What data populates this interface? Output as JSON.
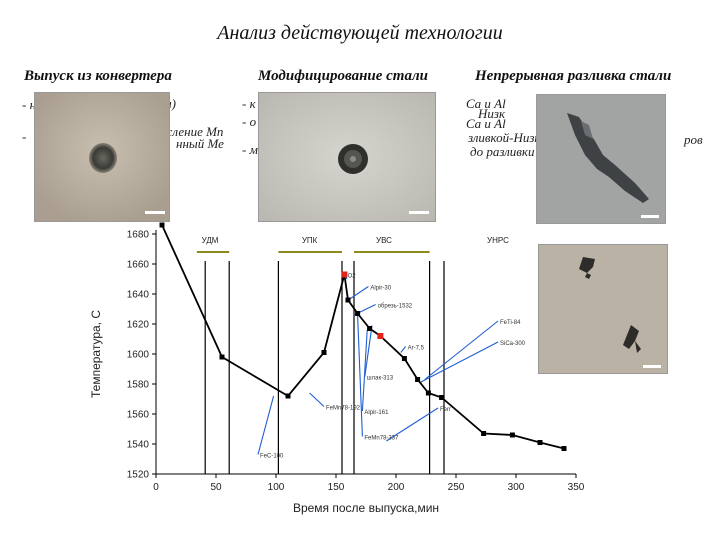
{
  "slide": {
    "title": "Анализ действующей технологии",
    "columns": [
      {
        "heading": "Выпуск из конвертера",
        "bullets": [
          "- н",
          "л)",
          "- ",
          "кисление Mn",
          "нный Ме"
        ]
      },
      {
        "heading": "Модифицирование стали",
        "bullets": [
          "- к",
          "- о",
          "- м"
        ]
      },
      {
        "heading": "Непрерывная разливка стали",
        "bullets": [
          "Ca и Al",
          "Низк",
          "Ca и Al",
          "зливкой-Низк",
          "ров",
          "до разливки"
        ]
      }
    ]
  },
  "micrographs": [
    {
      "name": "round-inclusion-1",
      "bg": "#b8aea0",
      "inclusion": "#3a3a36"
    },
    {
      "name": "round-inclusion-2",
      "bg": "#c6c4bd",
      "inclusion": "#2f302c"
    },
    {
      "name": "elongated-inclusion",
      "bg": "#9fa2a0",
      "inclusion": "#3e4244"
    },
    {
      "name": "sulfide-inclusions",
      "bg": "#b8b1a4",
      "inclusion": "#2e2c2a"
    }
  ],
  "chart_data": {
    "type": "line",
    "xlabel": "Время после выпуска,мин",
    "ylabel": "Температура, С",
    "xlim": [
      0,
      350
    ],
    "ylim": [
      1520,
      1680
    ],
    "xticks": [
      0,
      50,
      100,
      150,
      200,
      250,
      300,
      350
    ],
    "yticks": [
      1520,
      1540,
      1560,
      1580,
      1600,
      1620,
      1640,
      1660,
      1680
    ],
    "series": [
      {
        "values": [
          [
            5,
            1686
          ],
          [
            55,
            1598
          ],
          [
            110,
            1572
          ],
          [
            140,
            1601
          ],
          [
            157,
            1653
          ],
          [
            160,
            1636
          ],
          [
            168,
            1627
          ],
          [
            178,
            1617
          ],
          [
            187,
            1612
          ],
          [
            207,
            1597
          ],
          [
            218,
            1583
          ],
          [
            227,
            1574
          ],
          [
            238,
            1571
          ],
          [
            273,
            1547
          ],
          [
            297,
            1546
          ],
          [
            320,
            1541
          ],
          [
            340,
            1537
          ]
        ]
      }
    ],
    "line_color": "#000000",
    "stage_labels": [
      {
        "text": "УДМ",
        "x": 45
      },
      {
        "text": "УПК",
        "x": 128
      },
      {
        "text": "УВС",
        "x": 190
      },
      {
        "text": "УНРС",
        "x": 285
      }
    ],
    "stage_bars": [
      [
        34,
        61
      ],
      [
        102,
        155
      ],
      [
        165,
        228
      ]
    ],
    "stage_bar_color": "#8c8c1e",
    "stage_lines_x": [
      41,
      61,
      102,
      155,
      165,
      228,
      240
    ],
    "annotations": [
      {
        "text": "Ferr",
        "x": 235,
        "y": 1564,
        "tx": 192,
        "ty": 1542,
        "color": "#1f5fd0"
      },
      {
        "text": "FeC-100",
        "x": 85,
        "y": 1533,
        "tx": 98,
        "ty": 1572,
        "color": "#1f5fd0"
      },
      {
        "text": "FeMn78-192",
        "x": 140,
        "y": 1565,
        "tx": 128,
        "ty": 1574,
        "color": "#1f5fd0"
      },
      {
        "text": "O2",
        "x": 158,
        "y": 1653,
        "tx": 159,
        "ty": 1650,
        "color": "#1f5fd0"
      },
      {
        "text": "Alpir-30",
        "x": 177,
        "y": 1645,
        "tx": 162,
        "ty": 1637,
        "color": "#1f5fd0"
      },
      {
        "text": "обрезь-1532",
        "x": 183,
        "y": 1633,
        "tx": 165,
        "ty": 1626,
        "color": "#1f5fd0"
      },
      {
        "text": "шлак-313",
        "x": 174,
        "y": 1585,
        "tx": 180,
        "ty": 1619,
        "color": "#1f5fd0"
      },
      {
        "text": "Alpir-161",
        "x": 172,
        "y": 1562,
        "tx": 176,
        "ty": 1616,
        "color": "#1f5fd0"
      },
      {
        "text": "FeMn78-337",
        "x": 172,
        "y": 1545,
        "tx": 168,
        "ty": 1626,
        "color": "#1f5fd0"
      },
      {
        "text": "FeTi-84",
        "x": 285,
        "y": 1622,
        "tx": 224,
        "ty": 1583,
        "color": "#1f5fd0"
      },
      {
        "text": "SiCa-300",
        "x": 285,
        "y": 1608,
        "tx": 220,
        "ty": 1581,
        "color": "#1f5fd0"
      },
      {
        "text": "Ar-7,5",
        "x": 208,
        "y": 1605,
        "tx": 204,
        "ty": 1601,
        "color": "#1f5fd0"
      }
    ],
    "highlight_points": [
      [
        157,
        1653
      ],
      [
        187,
        1612
      ]
    ],
    "highlight_color": "#e2231a"
  }
}
